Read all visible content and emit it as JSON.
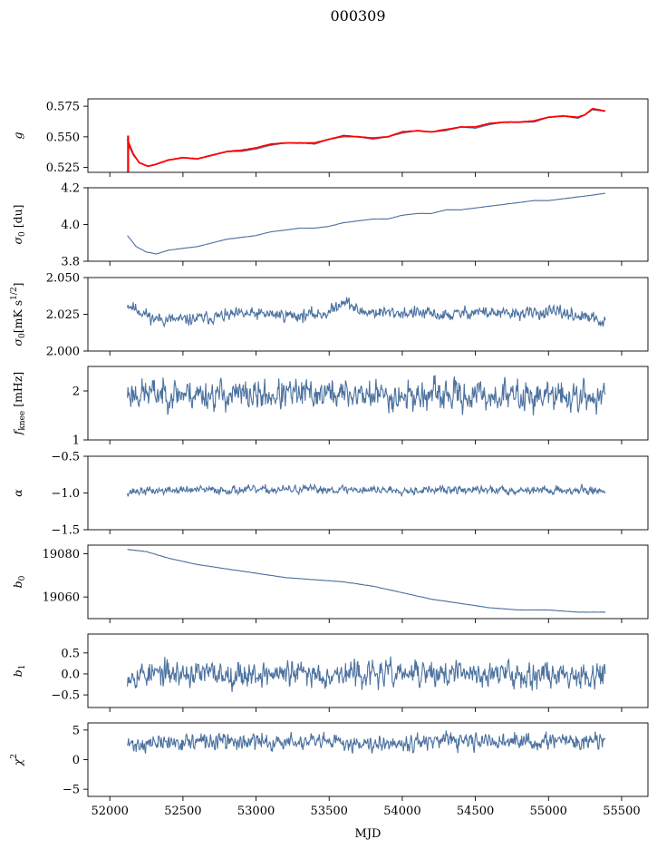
{
  "title": "000309",
  "chart_data": {
    "type": "line",
    "title": "000309",
    "xlabel": "MJD",
    "xlim": [
      51850,
      55680
    ],
    "x_ticks": [
      52000,
      52500,
      53000,
      53500,
      54000,
      54500,
      55000,
      55500
    ],
    "x_tick_labels": [
      "52000",
      "52500",
      "53000",
      "53500",
      "54000",
      "54500",
      "55000",
      "55500"
    ],
    "x_start": 52120,
    "x_end": 55390,
    "line_color": "#4c72a0",
    "highlight_color": "#ff0000",
    "panels": [
      {
        "ylabel": "g",
        "ylim": [
          0.521,
          0.581
        ],
        "yticks": [
          0.525,
          0.55,
          0.575
        ],
        "ytick_labels": [
          "0.525",
          "0.550",
          "0.575"
        ],
        "series": [
          {
            "color": "#4c72a0",
            "x": [
              52120,
              52160,
              52200,
              52260,
              52300,
              52400,
              52500,
              52600,
              52700,
              52800,
              52900,
              53000,
              53100,
              53200,
              53300,
              53400,
              53500,
              53600,
              53700,
              53800,
              53900,
              54000,
              54100,
              54200,
              54300,
              54400,
              54500,
              54600,
              54700,
              54800,
              54900,
              55000,
              55100,
              55200,
              55250,
              55300,
              55390
            ],
            "y": [
              0.545,
              0.535,
              0.529,
              0.526,
              0.527,
              0.531,
              0.533,
              0.532,
              0.535,
              0.538,
              0.538,
              0.54,
              0.543,
              0.545,
              0.545,
              0.544,
              0.548,
              0.55,
              0.55,
              0.548,
              0.55,
              0.553,
              0.555,
              0.554,
              0.555,
              0.558,
              0.557,
              0.56,
              0.562,
              0.562,
              0.562,
              0.566,
              0.567,
              0.565,
              0.568,
              0.572,
              0.571
            ]
          },
          {
            "color": "#ff0000",
            "x": [
              52120,
              52160,
              52200,
              52260,
              52300,
              52400,
              52500,
              52600,
              52700,
              52800,
              52900,
              53000,
              53100,
              53200,
              53300,
              53400,
              53500,
              53600,
              53700,
              53800,
              53900,
              54000,
              54100,
              54200,
              54300,
              54400,
              54500,
              54600,
              54700,
              54800,
              54900,
              55000,
              55100,
              55200,
              55250,
              55300,
              55390
            ],
            "y": [
              0.548,
              0.536,
              0.529,
              0.526,
              0.527,
              0.531,
              0.533,
              0.532,
              0.535,
              0.538,
              0.539,
              0.541,
              0.544,
              0.545,
              0.545,
              0.545,
              0.548,
              0.551,
              0.55,
              0.549,
              0.55,
              0.554,
              0.555,
              0.554,
              0.556,
              0.558,
              0.558,
              0.561,
              0.562,
              0.562,
              0.563,
              0.566,
              0.567,
              0.566,
              0.568,
              0.573,
              0.571
            ]
          }
        ]
      },
      {
        "ylabel": "σ0 [du]",
        "ylim": [
          3.8,
          4.2
        ],
        "yticks": [
          3.8,
          4.0,
          4.2
        ],
        "ytick_labels": [
          "3.8",
          "4.0",
          "4.2"
        ],
        "series": [
          {
            "color": "#4c72a0",
            "x": [
              52120,
              52180,
              52250,
              52320,
              52400,
              52500,
              52600,
              52700,
              52800,
              52900,
              53000,
              53100,
              53200,
              53300,
              53400,
              53500,
              53600,
              53700,
              53800,
              53900,
              54000,
              54100,
              54200,
              54300,
              54400,
              54500,
              54600,
              54700,
              54800,
              54900,
              55000,
              55100,
              55200,
              55300,
              55390
            ],
            "y": [
              3.94,
              3.88,
              3.85,
              3.84,
              3.86,
              3.87,
              3.88,
              3.9,
              3.92,
              3.93,
              3.94,
              3.96,
              3.97,
              3.98,
              3.98,
              3.99,
              4.01,
              4.02,
              4.03,
              4.03,
              4.05,
              4.06,
              4.06,
              4.08,
              4.08,
              4.09,
              4.1,
              4.11,
              4.12,
              4.13,
              4.13,
              4.14,
              4.15,
              4.16,
              4.17
            ]
          }
        ]
      },
      {
        "ylabel": "σ0[mK s^1/2]",
        "ylim": [
          2.0,
          2.05
        ],
        "yticks": [
          2.0,
          2.025,
          2.05
        ],
        "ytick_labels": [
          "2.000",
          "2.025",
          "2.050"
        ],
        "series": [
          {
            "color": "#4c72a0",
            "noise": 0.003,
            "seed": 11,
            "x": [
              52120,
              52300,
              52500,
              52700,
              52900,
              53100,
              53300,
              53500,
              53600,
              53700,
              53900,
              54100,
              54300,
              54500,
              54700,
              54900,
              55100,
              55300,
              55390
            ],
            "y": [
              2.032,
              2.022,
              2.021,
              2.023,
              2.025,
              2.025,
              2.024,
              2.026,
              2.035,
              2.027,
              2.026,
              2.026,
              2.024,
              2.027,
              2.025,
              2.026,
              2.026,
              2.022,
              2.019
            ]
          }
        ]
      },
      {
        "ylabel": "fknee [mHz]",
        "ylim": [
          1.0,
          2.5
        ],
        "yticks": [
          1,
          2
        ],
        "ytick_labels": [
          "1",
          "2"
        ],
        "series": [
          {
            "color": "#4c72a0",
            "noise": 0.22,
            "seed": 23,
            "x": [
              52120,
              52500,
              53000,
              53500,
              54000,
              54500,
              55000,
              55390
            ],
            "y": [
              1.95,
              1.95,
              1.9,
              1.95,
              1.9,
              1.9,
              1.9,
              1.85
            ]
          }
        ]
      },
      {
        "ylabel": "α",
        "ylim": [
          -1.5,
          -0.5
        ],
        "yticks": [
          -1.5,
          -1.0,
          -0.5
        ],
        "ytick_labels": [
          "−1.5",
          "−1.0",
          "−0.5"
        ],
        "series": [
          {
            "color": "#4c72a0",
            "noise": 0.04,
            "seed": 37,
            "x": [
              52120,
              52500,
              53000,
              53500,
              54000,
              54500,
              55000,
              55390
            ],
            "y": [
              -0.98,
              -0.96,
              -0.96,
              -0.95,
              -0.96,
              -0.96,
              -0.96,
              -0.97
            ]
          }
        ]
      },
      {
        "ylabel": "b0",
        "ylim": [
          19050,
          19084
        ],
        "yticks": [
          19060,
          19080
        ],
        "ytick_labels": [
          "19060",
          "19080"
        ],
        "series": [
          {
            "color": "#4c72a0",
            "x": [
              52120,
              52250,
              52400,
              52600,
              52800,
              53000,
              53200,
              53400,
              53600,
              53800,
              54000,
              54200,
              54400,
              54600,
              54800,
              55000,
              55200,
              55390
            ],
            "y": [
              19082,
              19081,
              19078,
              19075,
              19073,
              19071,
              19069,
              19068,
              19067,
              19065,
              19062,
              19059,
              19057,
              19055,
              19054,
              19054,
              19053,
              19053
            ]
          }
        ]
      },
      {
        "ylabel": "b1",
        "ylim": [
          -0.8,
          0.95
        ],
        "yticks": [
          -0.5,
          0.0,
          0.5
        ],
        "ytick_labels": [
          "−0.5",
          "0.0",
          "0.5"
        ],
        "series": [
          {
            "color": "#4c72a0",
            "noise": 0.22,
            "seed": 53,
            "x": [
              52120,
              52500,
              53000,
              53500,
              54000,
              54500,
              55000,
              55390
            ],
            "y": [
              0.0,
              0.0,
              0.0,
              0.0,
              0.0,
              0.0,
              0.0,
              0.0
            ]
          }
        ]
      },
      {
        "ylabel": "χ2",
        "ylim": [
          -6.2,
          6.2
        ],
        "yticks": [
          -5,
          0,
          5
        ],
        "ytick_labels": [
          "−5",
          "0",
          "5"
        ],
        "series": [
          {
            "color": "#4c72a0",
            "noise": 1.0,
            "seed": 71,
            "x": [
              52120,
              52500,
              53000,
              53500,
              54000,
              54500,
              55000,
              55390
            ],
            "y": [
              2.5,
              3.0,
              3.0,
              2.8,
              3.0,
              3.0,
              3.0,
              3.2
            ]
          }
        ]
      }
    ]
  }
}
